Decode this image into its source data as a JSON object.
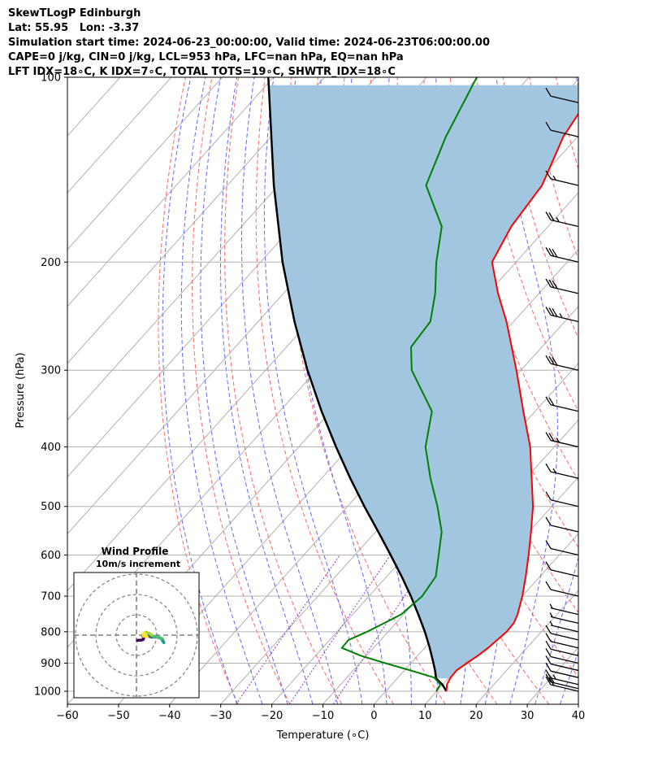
{
  "header": {
    "line1": "SkewTLogP Edinburgh",
    "line2": "Lat: 55.95   Lon: -3.37",
    "line3": "Simulation start time: 2024-06-23_00:00:00, Valid time: 2024-06-23T06:00:00.00",
    "line4": "CAPE=0 j/kg, CIN=0 j/kg, LCL=953 hPa, LFC=nan hPa, EQ=nan hPa",
    "line5": "LFT IDX=18∘C, K IDX=7∘C, TOTAL TOTS=19∘C, SHWTR_IDX=18∘C"
  },
  "chart_data": [
    {
      "type": "line",
      "subtype": "skew-t log-p",
      "xlabel": "Temperature (∘C)",
      "ylabel": "Pressure (hPa)",
      "xlim": [
        -60,
        40
      ],
      "ylim": [
        1050,
        100
      ],
      "y_scale": "log",
      "xticks": [
        -60,
        -50,
        -40,
        -30,
        -20,
        -10,
        0,
        10,
        20,
        30,
        40
      ],
      "xtick_labels": [
        "−60",
        "−50",
        "−40",
        "−30",
        "−20",
        "−10",
        "0",
        "10",
        "20",
        "30",
        "40"
      ],
      "yticks": [
        1000,
        900,
        800,
        700,
        600,
        500,
        400,
        300,
        200,
        100
      ],
      "ytick_labels": [
        "1000",
        "900",
        "800",
        "700",
        "600",
        "500",
        "400",
        "300",
        "200",
        "100"
      ],
      "grid": true,
      "colors": {
        "temperature": "#ff0000",
        "dewpoint": "#008000",
        "parcel": "#000000",
        "shading": "#a2c6e0",
        "dry_adiabats": "#ff6666",
        "moist_adiabats": "#6666ff",
        "mixing_ratio": "#9933cc",
        "isotherms": "#b0b0b0"
      },
      "series": [
        {
          "key": "temperature",
          "pressure": [
            1000,
            975,
            950,
            925,
            900,
            875,
            850,
            825,
            800,
            775,
            750,
            700,
            650,
            600,
            550,
            500,
            450,
            400,
            350,
            300,
            250,
            225,
            200,
            175,
            150,
            125,
            110,
            100
          ],
          "values": [
            11.9,
            10.8,
            10.3,
            10.2,
            10.9,
            11.8,
            12.4,
            12.8,
            13.2,
            13.1,
            12.3,
            10.0,
            7.2,
            4.0,
            0.4,
            -3.7,
            -8.9,
            -14.7,
            -22.3,
            -30.9,
            -41.4,
            -48.0,
            -54.7,
            -57.2,
            -58.4,
            -62.8,
            -64.4,
            -65.3
          ]
        },
        {
          "key": "dewpoint",
          "pressure": [
            1000,
            975,
            950,
            925,
            900,
            875,
            850,
            825,
            800,
            775,
            750,
            700,
            650,
            600,
            550,
            500,
            450,
            400,
            350,
            300,
            275,
            250,
            225,
            200,
            175,
            150,
            125,
            100
          ],
          "values": [
            9.9,
            9.5,
            7.1,
            1.2,
            -5.0,
            -11.2,
            -16.2,
            -16.3,
            -14.1,
            -12.3,
            -10.5,
            -9.6,
            -10.4,
            -13.6,
            -17.1,
            -22.4,
            -28.7,
            -35.2,
            -40.2,
            -51.4,
            -55.6,
            -56.3,
            -60.3,
            -65.6,
            -70.8,
            -81.1,
            -85.8,
            -90.2
          ]
        },
        {
          "key": "parcel",
          "pressure": [
            1000,
            975,
            953,
            925,
            900,
            850,
            800,
            750,
            700,
            650,
            600,
            550,
            500,
            450,
            400,
            350,
            300,
            250,
            200,
            150,
            100
          ],
          "values": [
            11.9,
            9.9,
            7.6,
            6.0,
            4.4,
            1.0,
            -2.8,
            -7.1,
            -11.8,
            -17.1,
            -23.0,
            -29.5,
            -36.7,
            -44.4,
            -52.7,
            -61.8,
            -71.8,
            -82.9,
            -95.7,
            -110.9,
            -131.0
          ]
        }
      ],
      "wind_barbs": {
        "pressure": [
          1000,
          990,
          975,
          950,
          925,
          900,
          875,
          850,
          825,
          800,
          775,
          750,
          700,
          650,
          600,
          550,
          500,
          450,
          400,
          350,
          300,
          250,
          225,
          200,
          175,
          150,
          125,
          110
        ],
        "speed_kt": [
          20,
          20,
          15,
          10,
          10,
          10,
          10,
          10,
          10,
          5,
          5,
          5,
          10,
          10,
          10,
          10,
          10,
          15,
          25,
          20,
          30,
          35,
          30,
          30,
          25,
          15,
          10,
          10
        ]
      }
    },
    {
      "type": "scatter",
      "subtype": "hodograph",
      "title": "Wind Profile",
      "subtitle": "10m/s increment",
      "ring_step_ms": 10,
      "rings": [
        1,
        2,
        3
      ],
      "u": [
        0.5,
        1.3,
        2.0,
        3.2,
        3.6,
        3.4,
        3.0,
        3.3,
        4.6,
        6.1,
        7.5,
        8.4,
        9.2,
        10.1,
        10.8,
        11.5,
        12.0,
        12.4,
        12.7,
        13.1,
        13.5,
        12.6,
        11.2,
        9.6,
        8.3,
        7.4,
        6.8,
        5.6,
        4.6,
        3.9,
        3.2,
        3.3,
        4.0,
        5.3
      ],
      "v": [
        -2.6,
        -2.5,
        -2.5,
        -2.2,
        -1.5,
        -0.7,
        -0.3,
        -0.4,
        -0.7,
        -0.6,
        -1.0,
        -0.8,
        -1.0,
        -0.7,
        -1.2,
        -1.3,
        -1.6,
        -1.9,
        -2.5,
        -3.2,
        -3.7,
        -1.7,
        -1.1,
        -0.8,
        -0.6,
        0.0,
        0.6,
        1.1,
        1.5,
        1.1,
        0.6,
        -0.3,
        -0.6,
        -0.8
      ],
      "colors": [
        "#440154",
        "#46327e",
        "#365c8d",
        "#277f8e",
        "#1fa187",
        "#4ac16d",
        "#a0da39",
        "#fde725"
      ]
    }
  ]
}
